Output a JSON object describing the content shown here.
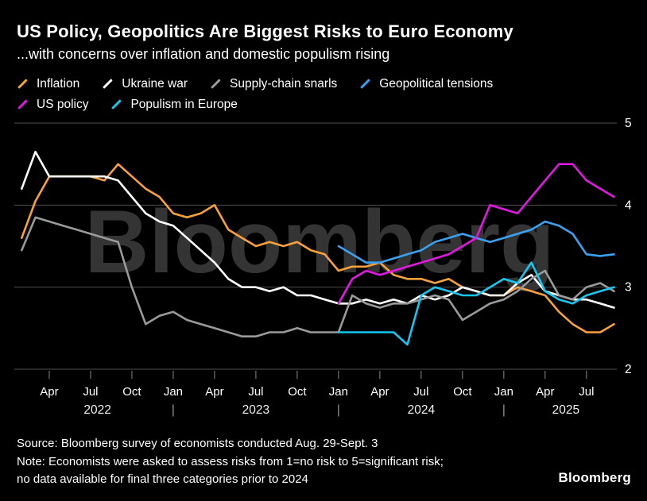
{
  "header": {
    "title": "US Policy, Geopolitics Are Biggest Risks to Euro Economy",
    "subtitle": "...with concerns over inflation and domestic populism rising"
  },
  "legend_rows": [
    [
      {
        "id": "inflation",
        "label": "Inflation",
        "color": "#F9A13A"
      },
      {
        "id": "ukraine-war",
        "label": "Ukraine war",
        "color": "#FFFFFF"
      },
      {
        "id": "supply-chain-snarls",
        "label": "Supply-chain snarls",
        "color": "#9A9A9A"
      },
      {
        "id": "geopolitical-tensions",
        "label": "Geopolitical tensions",
        "color": "#3AA1F0"
      }
    ],
    [
      {
        "id": "us-policy",
        "label": "US policy",
        "color": "#E118E1"
      },
      {
        "id": "populism-in-europe",
        "label": "Populism in Europe",
        "color": "#16C6F0"
      }
    ]
  ],
  "watermark": "Bloomberg",
  "chart_data": {
    "type": "line",
    "title": "US Policy, Geopolitics Are Biggest Risks to Euro Economy",
    "subtitle": "...with concerns over inflation and domestic populism rising",
    "x_unit": "monthly surveys",
    "x_start": "2022-02",
    "x_end": "2025-09",
    "ylim": [
      1.85,
      5.1
    ],
    "y_ticks": [
      2,
      3,
      4,
      5
    ],
    "grid": "horizontal-only",
    "grid_color": "#4E4E4E",
    "legend_position": "top",
    "x_ticks": [
      {
        "i": 2,
        "label": "Apr"
      },
      {
        "i": 5,
        "label": "Jul"
      },
      {
        "i": 8,
        "label": "Oct"
      },
      {
        "i": 11,
        "label": "Jan"
      },
      {
        "i": 14,
        "label": "Apr"
      },
      {
        "i": 17,
        "label": "Jul"
      },
      {
        "i": 20,
        "label": "Oct"
      },
      {
        "i": 23,
        "label": "Jan"
      },
      {
        "i": 26,
        "label": "Apr"
      },
      {
        "i": 29,
        "label": "Jul"
      },
      {
        "i": 32,
        "label": "Oct"
      },
      {
        "i": 35,
        "label": "Jan"
      },
      {
        "i": 38,
        "label": "Apr"
      },
      {
        "i": 41,
        "label": "Jul"
      }
    ],
    "year_labels": [
      {
        "i": 5.5,
        "text": "2022"
      },
      {
        "i": 11,
        "text": "|"
      },
      {
        "i": 17,
        "text": "2023"
      },
      {
        "i": 23,
        "text": "|"
      },
      {
        "i": 29,
        "text": "2024"
      },
      {
        "i": 35,
        "text": "|"
      },
      {
        "i": 39.5,
        "text": "2025"
      }
    ],
    "series": [
      {
        "id": "inflation",
        "name": "Inflation",
        "color": "#F9A13A",
        "start_index": 0,
        "values": [
          3.6,
          4.05,
          4.35,
          4.35,
          4.35,
          4.35,
          4.3,
          4.5,
          4.35,
          4.2,
          4.1,
          3.9,
          3.85,
          3.9,
          4.0,
          3.7,
          3.6,
          3.5,
          3.55,
          3.5,
          3.55,
          3.45,
          3.4,
          3.2,
          3.25,
          3.25,
          3.3,
          3.15,
          3.1,
          3.1,
          3.05,
          3.1,
          3.0,
          2.95,
          2.9,
          2.9,
          3.0,
          2.95,
          2.9,
          2.7,
          2.55,
          2.45,
          2.45,
          2.55
        ]
      },
      {
        "id": "ukraine-war",
        "name": "Ukraine war",
        "color": "#FFFFFF",
        "start_index": 0,
        "values": [
          4.2,
          4.65,
          4.35,
          4.35,
          4.35,
          4.35,
          4.35,
          4.3,
          4.1,
          3.9,
          3.8,
          3.75,
          3.6,
          3.45,
          3.3,
          3.1,
          3.0,
          3.0,
          2.95,
          3.0,
          2.9,
          2.9,
          2.85,
          2.8,
          2.8,
          2.85,
          2.8,
          2.85,
          2.8,
          2.9,
          2.85,
          2.9,
          3.0,
          2.95,
          2.9,
          2.9,
          3.05,
          3.15,
          2.95,
          2.9,
          2.85,
          2.85,
          2.8,
          2.75
        ]
      },
      {
        "id": "supply-chain-snarls",
        "name": "Supply-chain snarls",
        "color": "#9A9A9A",
        "start_index": 0,
        "values": [
          3.45,
          3.85,
          3.8,
          3.75,
          3.7,
          3.65,
          3.6,
          3.55,
          3.0,
          2.55,
          2.65,
          2.7,
          2.6,
          2.55,
          2.5,
          2.45,
          2.4,
          2.4,
          2.45,
          2.45,
          2.5,
          2.45,
          2.45,
          2.45,
          2.9,
          2.8,
          2.75,
          2.8,
          2.8,
          2.85,
          2.9,
          2.85,
          2.6,
          2.7,
          2.8,
          2.85,
          2.95,
          3.1,
          3.2,
          2.9,
          2.85,
          3.0,
          3.05,
          2.95
        ]
      },
      {
        "id": "geopolitical-tensions",
        "name": "Geopolitical tensions",
        "color": "#3AA1F0",
        "start_index": 23,
        "values": [
          3.5,
          3.4,
          3.3,
          3.3,
          3.35,
          3.4,
          3.45,
          3.55,
          3.6,
          3.65,
          3.6,
          3.55,
          3.6,
          3.65,
          3.7,
          3.8,
          3.75,
          3.65,
          3.4,
          3.38,
          3.4
        ]
      },
      {
        "id": "us-policy",
        "name": "US policy",
        "color": "#E118E1",
        "start_index": 23,
        "values": [
          2.8,
          3.1,
          3.2,
          3.15,
          3.2,
          3.25,
          3.3,
          3.35,
          3.4,
          3.5,
          3.6,
          4.0,
          3.95,
          3.9,
          4.1,
          4.3,
          4.5,
          4.5,
          4.3,
          4.2,
          4.1
        ]
      },
      {
        "id": "populism-in-europe",
        "name": "Populism in Europe",
        "color": "#16C6F0",
        "start_index": 23,
        "values": [
          2.45,
          2.45,
          2.45,
          2.45,
          2.45,
          2.3,
          2.9,
          3.0,
          2.95,
          2.9,
          2.9,
          3.0,
          3.1,
          3.05,
          3.3,
          2.95,
          2.85,
          2.8,
          2.9,
          2.95,
          3.0
        ]
      }
    ]
  },
  "footer": {
    "source": "Source: Bloomberg survey of economists conducted Aug. 29-Sept. 3",
    "note_line1": "Note: Economists were asked to assess risks from 1=no risk to 5=significant risk;",
    "note_line2": "no data available for final three categories prior to 2024",
    "logo": "Bloomberg"
  }
}
